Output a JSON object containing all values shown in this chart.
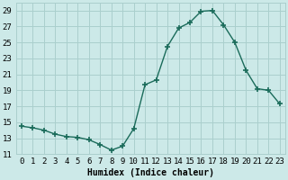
{
  "x": [
    0,
    1,
    2,
    3,
    4,
    5,
    6,
    7,
    8,
    9,
    10,
    11,
    12,
    13,
    14,
    15,
    16,
    17,
    18,
    19,
    20,
    21,
    22,
    23
  ],
  "y": [
    14.5,
    14.3,
    14.0,
    13.5,
    13.2,
    13.1,
    12.8,
    12.2,
    11.5,
    12.0,
    14.2,
    19.7,
    20.3,
    24.5,
    26.8,
    27.5,
    28.9,
    29.0,
    27.2,
    25.0,
    21.5,
    19.2,
    19.0,
    17.3
  ],
  "line_color": "#1a6b5a",
  "marker": "P",
  "markersize": 3,
  "linewidth": 1.0,
  "bg_color": "#cce9e8",
  "grid_color": "#aacfcd",
  "xlabel": "Humidex (Indice chaleur)",
  "xlabel_fontsize": 7,
  "tick_fontsize": 6.5,
  "ylim": [
    11,
    30
  ],
  "yticks": [
    11,
    13,
    15,
    17,
    19,
    21,
    23,
    25,
    27,
    29
  ],
  "xticks": [
    0,
    1,
    2,
    3,
    4,
    5,
    6,
    7,
    8,
    9,
    10,
    11,
    12,
    13,
    14,
    15,
    16,
    17,
    18,
    19,
    20,
    21,
    22,
    23
  ],
  "xlim": [
    -0.5,
    23.5
  ]
}
